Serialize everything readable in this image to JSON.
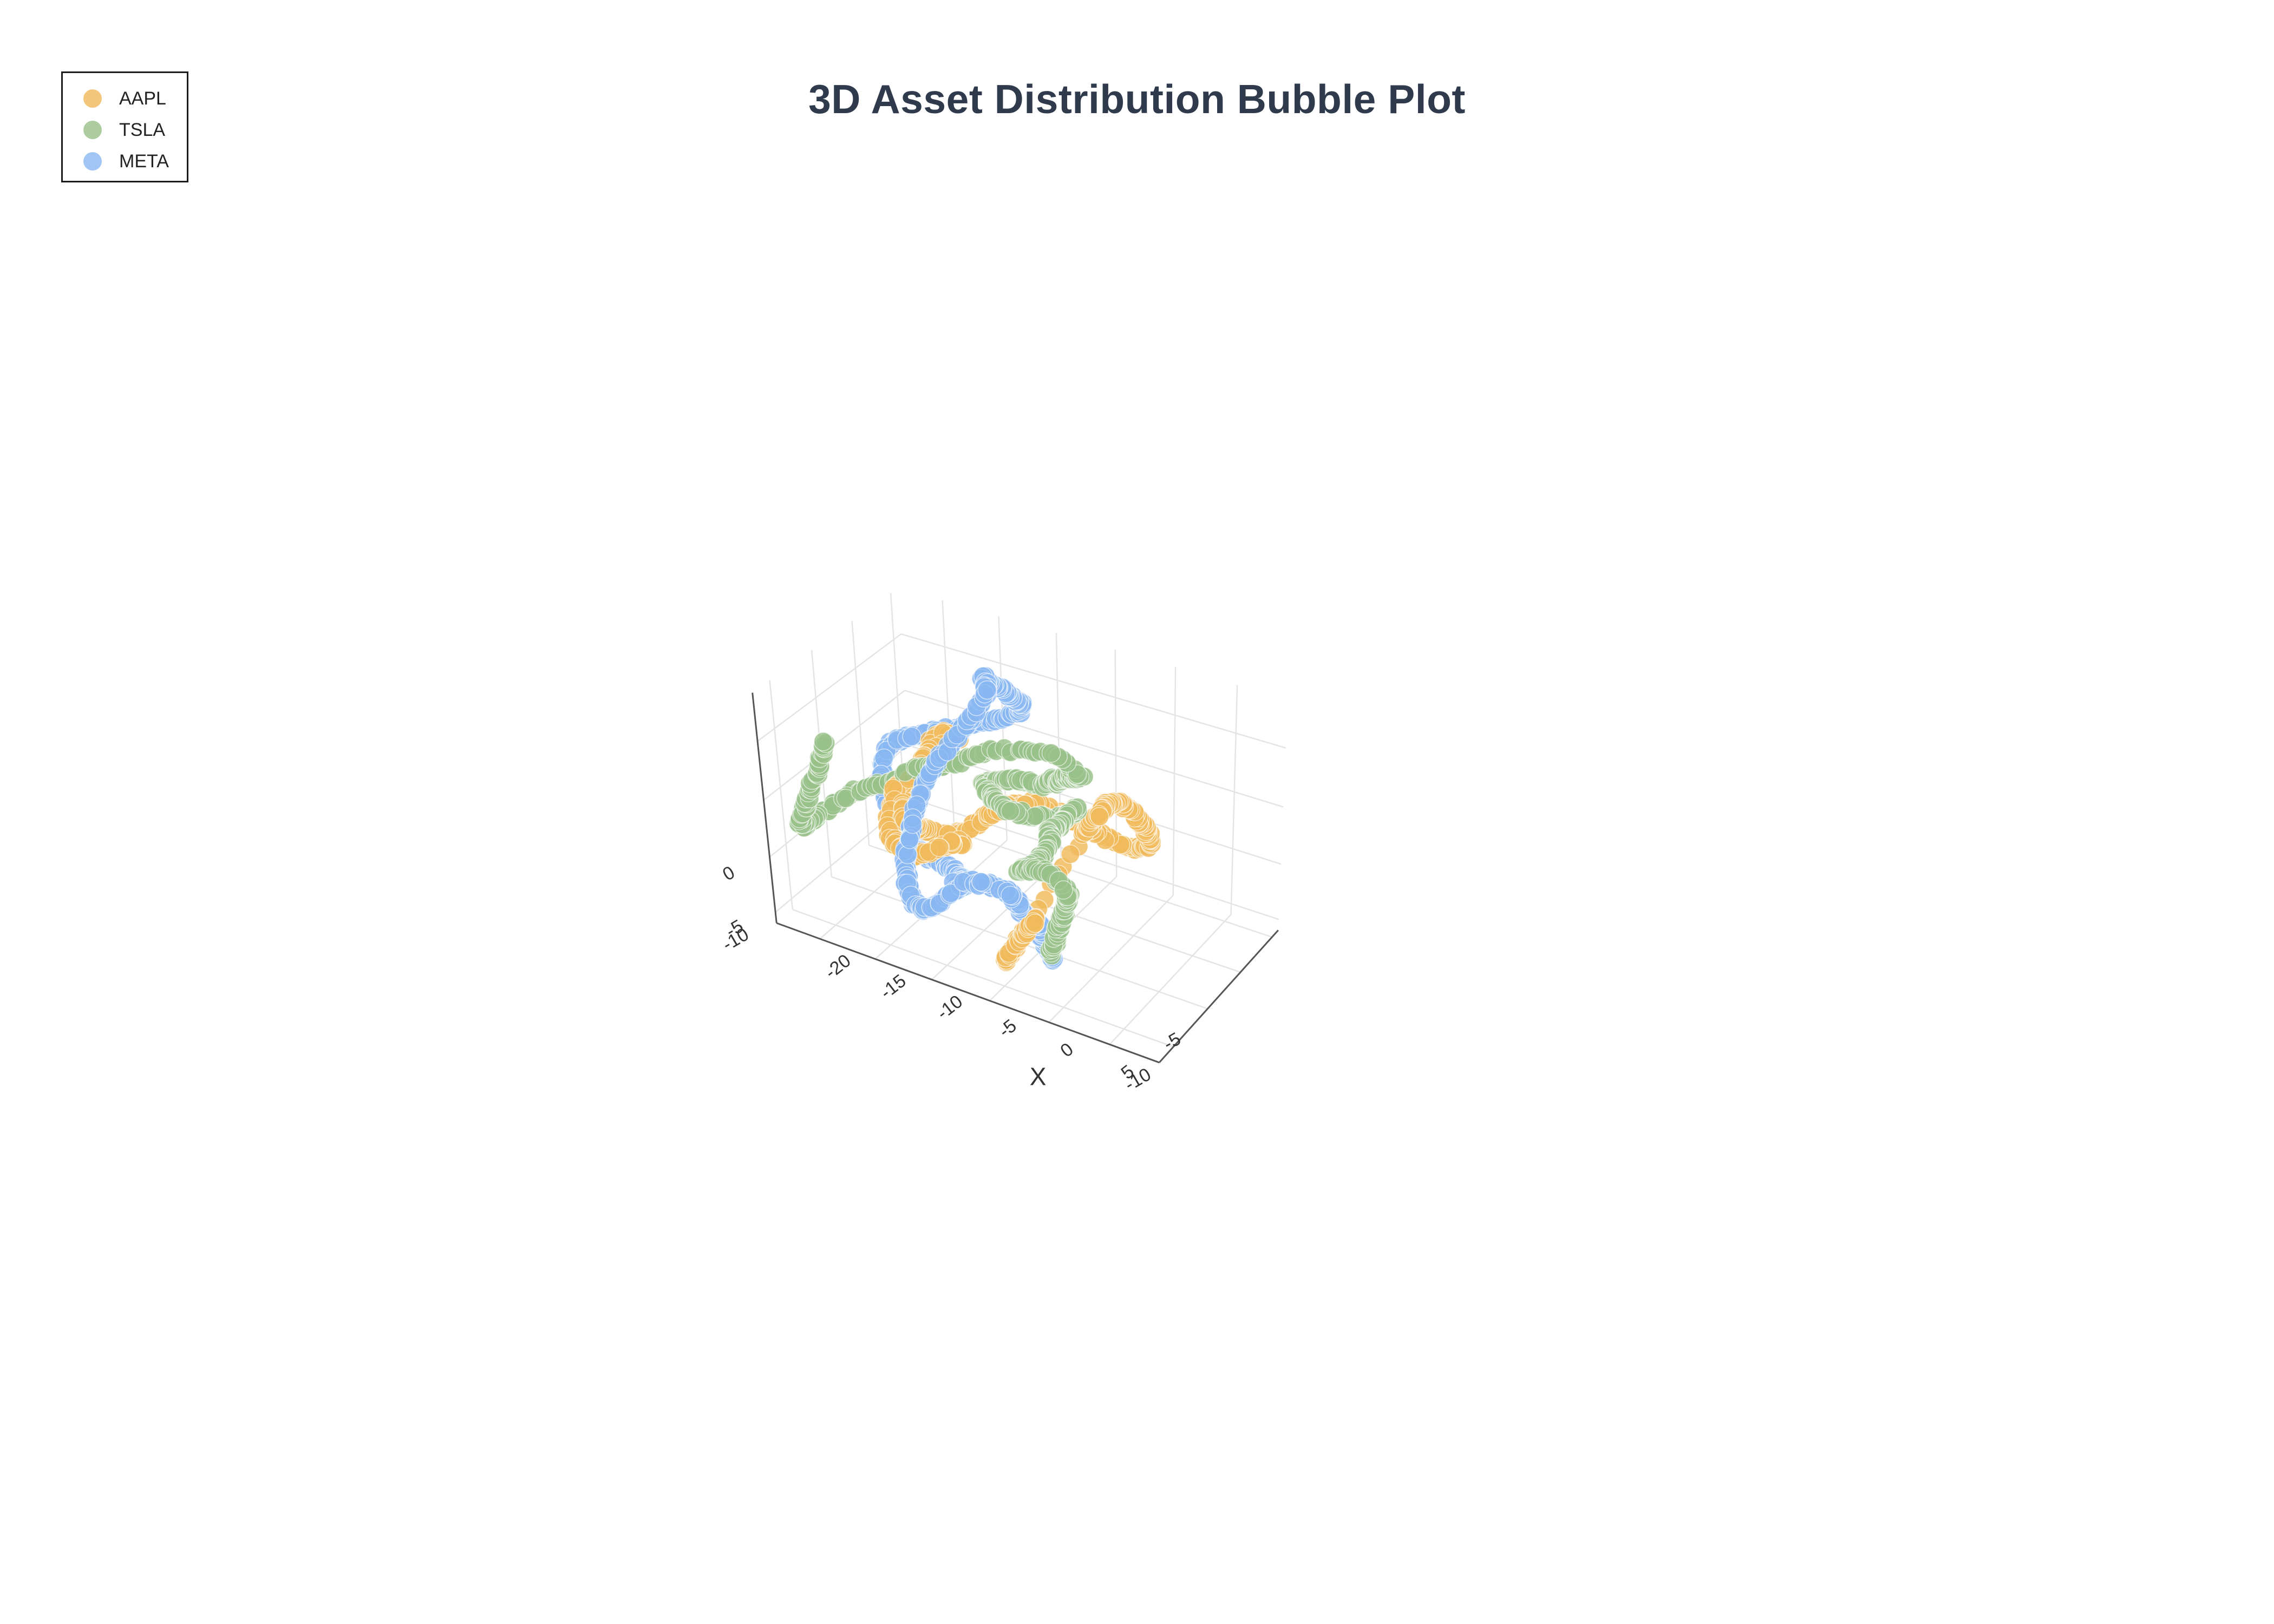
{
  "chart_data": {
    "type": "scatter",
    "title": "3D Asset Distribution Bubble Plot",
    "xlabel": "X",
    "ylabel": "",
    "zlabel": "",
    "legend_position": "top-left",
    "grid": true,
    "x_ticks": [
      "-20",
      "-15",
      "-10",
      "-5",
      "0",
      "5"
    ],
    "y_ticks": [
      "-10",
      "-5"
    ],
    "z_ticks": [
      "0",
      "-5",
      "-10"
    ],
    "series": [
      {
        "name": "AAPL",
        "color": "#f0b95a",
        "description_points": [
          [
            -4.0,
            -7.0,
            -1.5
          ],
          [
            -4.5,
            -7.3,
            -2.3
          ],
          [
            -5.0,
            -7.7,
            -3.2
          ],
          [
            -5.5,
            -8.1,
            -4.2
          ],
          [
            -6.0,
            -8.5,
            -5.2
          ],
          [
            -4.0,
            -0.4,
            2.0
          ],
          [
            -3.5,
            -0.1,
            2.9
          ],
          [
            -3.0,
            0.3,
            3.8
          ],
          [
            -3.0,
            1.0,
            4.0
          ],
          [
            -2.8,
            2.3,
            3.8
          ],
          [
            -2.0,
            3.0,
            2.8
          ],
          [
            -1.3,
            3.6,
            1.4
          ],
          [
            -1.0,
            4.2,
            0.2
          ],
          [
            -1.3,
            4.6,
            -1.0
          ],
          [
            -2.4,
            4.4,
            -1.5
          ],
          [
            -4.2,
            3.5,
            -0.8
          ],
          [
            -5.8,
            2.5,
            0.5
          ],
          [
            -7.2,
            1.5,
            1.6
          ],
          [
            -8.5,
            0.6,
            2.6
          ],
          [
            -10.0,
            -0.6,
            2.8
          ],
          [
            -11.3,
            -1.7,
            2.1
          ],
          [
            -12.4,
            -2.6,
            1.0
          ],
          [
            -13.4,
            -3.3,
            0.4
          ],
          [
            -15.0,
            -4.2,
            0.8
          ],
          [
            -15.6,
            -5.0,
            1.4
          ],
          [
            -16.0,
            -5.6,
            2.0
          ],
          [
            -15.8,
            -6.2,
            2.4
          ],
          [
            -16.6,
            -5.3,
            3.4
          ],
          [
            -17.1,
            -3.4,
            3.2
          ],
          [
            -17.3,
            -2.0,
            3.8
          ],
          [
            -17.0,
            -1.1,
            4.8
          ],
          [
            -17.3,
            -0.3,
            5.8
          ],
          [
            -16.6,
            0.5,
            6.4
          ],
          [
            -15.4,
            0.6,
            6.1
          ],
          [
            -16.7,
            -1.7,
            5.9
          ],
          [
            -16.5,
            -3.5,
            5.0
          ],
          [
            -17.4,
            -4.8,
            4.2
          ],
          [
            -17.2,
            -6.1,
            2.7
          ],
          [
            -16.5,
            -7.3,
            1.5
          ],
          [
            -14.3,
            -8.0,
            1.1
          ],
          [
            -12.8,
            -7.0,
            1.4
          ],
          [
            -12.0,
            -6.0,
            1.8
          ],
          [
            -11.2,
            -5.2,
            1.6
          ]
        ]
      },
      {
        "name": "TSLA",
        "color": "#98c18a",
        "description_points": [
          [
            -0.6,
            -10.6,
            -1.0
          ],
          [
            -0.4,
            -10.2,
            0.2
          ],
          [
            -0.2,
            -9.8,
            1.4
          ],
          [
            0.0,
            -9.5,
            2.6
          ],
          [
            0.3,
            -9.6,
            3.7
          ],
          [
            -1.0,
            -9.4,
            4.8
          ],
          [
            -2.5,
            -9.6,
            5.0
          ],
          [
            -3.9,
            -9.3,
            4.1
          ],
          [
            -3.5,
            -8.1,
            4.0
          ],
          [
            -3.5,
            -6.8,
            4.0
          ],
          [
            -3.7,
            -5.4,
            4.5
          ],
          [
            -4.6,
            -4.2,
            4.3
          ],
          [
            -4.5,
            -3.2,
            4.0
          ],
          [
            -4.6,
            -2.0,
            4.2
          ],
          [
            -4.2,
            -1.1,
            4.6
          ],
          [
            -5.0,
            -0.1,
            3.4
          ],
          [
            -6.0,
            -0.2,
            2.6
          ],
          [
            -7.7,
            -1.6,
            3.1
          ],
          [
            -9.0,
            -2.5,
            3.6
          ],
          [
            -10.6,
            -1.8,
            3.5
          ],
          [
            -12.0,
            -0.7,
            3.3
          ],
          [
            -13.1,
            0.3,
            3.2
          ],
          [
            -11.6,
            0.3,
            3.8
          ],
          [
            -10.1,
            0.4,
            4.3
          ],
          [
            -8.3,
            0.6,
            4.3
          ],
          [
            -7.1,
            0.3,
            5.3
          ],
          [
            -6.2,
            -0.1,
            5.7
          ],
          [
            -5.3,
            -0.4,
            6.6
          ],
          [
            -4.6,
            -0.5,
            6.8
          ],
          [
            -3.9,
            -0.7,
            7.2
          ],
          [
            -6.1,
            -1.2,
            8.8
          ],
          [
            -11.0,
            -1.4,
            7.6
          ],
          [
            -13.8,
            -2.8,
            6.3
          ],
          [
            -16.2,
            -3.6,
            5.6
          ],
          [
            -18.3,
            -4.6,
            4.2
          ],
          [
            -20.3,
            -5.8,
            3.6
          ],
          [
            -21.4,
            -6.8,
            2.6
          ],
          [
            -22.3,
            -8.0,
            2.0
          ],
          [
            -22.8,
            -9.0,
            1.5
          ],
          [
            -23.0,
            -9.4,
            1.7
          ],
          [
            -22.3,
            -9.0,
            4.2
          ],
          [
            -21.4,
            -8.6,
            6.8
          ],
          [
            -20.7,
            -8.4,
            9.3
          ]
        ]
      },
      {
        "name": "META",
        "color": "#89b7f1",
        "description_points": [
          [
            -3.6,
            -5.6,
            -6.0
          ],
          [
            -3.9,
            -5.8,
            -4.8
          ],
          [
            -4.3,
            -6.0,
            -3.6
          ],
          [
            -4.2,
            -6.2,
            -2.6
          ],
          [
            -4.9,
            -6.5,
            -2.3
          ],
          [
            -5.3,
            -6.8,
            -1.6
          ],
          [
            -5.4,
            -7.0,
            -0.8
          ],
          [
            -6.1,
            -7.3,
            0.2
          ],
          [
            -7.2,
            -7.5,
            0.5
          ],
          [
            -8.0,
            -7.9,
            0.8
          ],
          [
            -9.1,
            -8.3,
            0.8
          ],
          [
            -10.0,
            -9.3,
            -0.2
          ],
          [
            -10.8,
            -10.1,
            -0.9
          ],
          [
            -11.6,
            -10.4,
            -1.3
          ],
          [
            -12.4,
            -10.3,
            -1.0
          ],
          [
            -13.3,
            -9.8,
            0.1
          ],
          [
            -13.9,
            -9.0,
            1.3
          ],
          [
            -14.2,
            -8.0,
            2.6
          ],
          [
            -14.4,
            -6.8,
            4.2
          ],
          [
            -14.4,
            -5.5,
            5.7
          ],
          [
            -13.9,
            -4.1,
            7.4
          ],
          [
            -12.8,
            -2.6,
            9.3
          ],
          [
            -12.0,
            -1.7,
            10.9
          ],
          [
            -11.7,
            -0.6,
            12.2
          ],
          [
            -12.5,
            -0.1,
            12.6
          ],
          [
            -12.9,
            1.0,
            11.6
          ],
          [
            -12.2,
            2.1,
            10.4
          ],
          [
            -11.8,
            2.9,
            9.4
          ],
          [
            -11.8,
            4.0,
            8.5
          ],
          [
            -13.0,
            5.2,
            6.7
          ],
          [
            -15.8,
            5.1,
            5.1
          ],
          [
            -18.4,
            3.8,
            4.4
          ],
          [
            -20.4,
            2.4,
            3.9
          ],
          [
            -21.6,
            1.5,
            3.6
          ],
          [
            -22.2,
            1.0,
            3.2
          ],
          [
            -22.0,
            -0.6,
            1.5
          ],
          [
            -20.9,
            -1.3,
            -0.3
          ],
          [
            -19.3,
            -1.9,
            -1.4
          ],
          [
            -17.6,
            -2.5,
            -2.0
          ],
          [
            -16.8,
            -3.7,
            -1.9
          ],
          [
            -16.4,
            -4.3,
            -1.3
          ],
          [
            -15.6,
            -4.9,
            -1.0
          ],
          [
            -14.2,
            -5.2,
            -0.9
          ],
          [
            -12.3,
            -5.7,
            -0.7
          ],
          [
            -10.9,
            -6.5,
            -0.5
          ],
          [
            -9.8,
            -7.4,
            -0.3
          ],
          [
            -10.2,
            -8.2,
            0.2
          ]
        ]
      }
    ]
  }
}
